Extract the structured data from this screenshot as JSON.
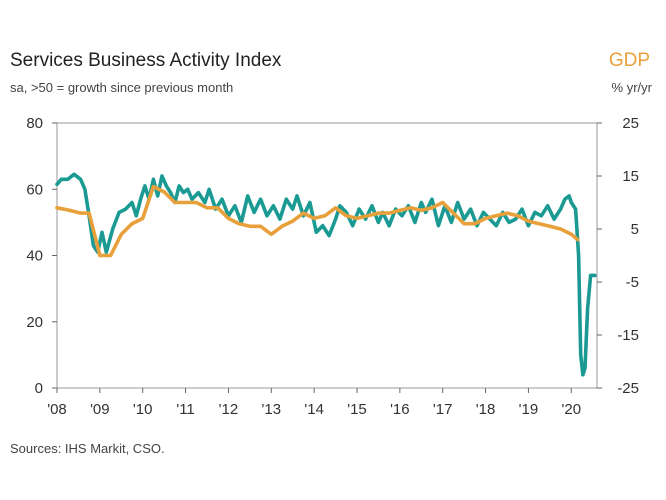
{
  "chart_data": {
    "type": "line",
    "title": "Services Business Activity Index",
    "subtitle": "sa, >50 = growth since previous month",
    "right_axis_title": "GDP",
    "right_axis_unit": "% yr/yr",
    "source": "Sources: IHS Markit, CSO.",
    "x_tick_labels": [
      "'08",
      "'09",
      "'10",
      "'11",
      "'12",
      "'13",
      "'14",
      "'15",
      "'16",
      "'17",
      "'18",
      "'19",
      "'20"
    ],
    "xlim": [
      2008,
      2020.6
    ],
    "left_axis": {
      "ylim": [
        0,
        80
      ],
      "ticks": [
        0,
        20,
        40,
        60,
        80
      ]
    },
    "right_axis": {
      "ylim": [
        -25,
        25
      ],
      "ticks": [
        -25,
        -15,
        -5,
        5,
        15,
        25
      ]
    },
    "grid": false,
    "series": [
      {
        "name": "Services Business Activity Index",
        "axis": "left",
        "color": "#1a9a93",
        "x": [
          2008.0,
          2008.1,
          2008.25,
          2008.4,
          2008.55,
          2008.65,
          2008.75,
          2008.85,
          2008.95,
          2009.05,
          2009.15,
          2009.3,
          2009.45,
          2009.6,
          2009.75,
          2009.85,
          2009.95,
          2010.05,
          2010.15,
          2010.25,
          2010.35,
          2010.45,
          2010.55,
          2010.65,
          2010.75,
          2010.85,
          2010.95,
          2011.05,
          2011.15,
          2011.3,
          2011.45,
          2011.55,
          2011.7,
          2011.85,
          2012.0,
          2012.15,
          2012.3,
          2012.45,
          2012.6,
          2012.75,
          2012.9,
          2013.05,
          2013.2,
          2013.35,
          2013.5,
          2013.6,
          2013.75,
          2013.9,
          2014.05,
          2014.2,
          2014.35,
          2014.5,
          2014.6,
          2014.75,
          2014.9,
          2015.05,
          2015.2,
          2015.35,
          2015.5,
          2015.6,
          2015.75,
          2015.9,
          2016.05,
          2016.2,
          2016.35,
          2016.5,
          2016.6,
          2016.75,
          2016.9,
          2017.05,
          2017.2,
          2017.35,
          2017.5,
          2017.65,
          2017.8,
          2017.95,
          2018.1,
          2018.25,
          2018.4,
          2018.55,
          2018.7,
          2018.85,
          2019.0,
          2019.15,
          2019.3,
          2019.45,
          2019.6,
          2019.75,
          2019.85,
          2019.95,
          2020.0,
          2020.1,
          2020.17,
          2020.22,
          2020.27,
          2020.32,
          2020.38,
          2020.45,
          2020.55
        ],
        "values": [
          61.5,
          63,
          63,
          64.5,
          63,
          60,
          52,
          43,
          41,
          47,
          41,
          48,
          53,
          54,
          56,
          52,
          57,
          61,
          57,
          63,
          58,
          64,
          61,
          59,
          56,
          61,
          59,
          60,
          57,
          59,
          56,
          60,
          54,
          57,
          52,
          55,
          50,
          58,
          53,
          57,
          52,
          55,
          51,
          57,
          54,
          58,
          52,
          56,
          47,
          49,
          46,
          51,
          55,
          53,
          49,
          54,
          51,
          55,
          50,
          53,
          49,
          54,
          52,
          55,
          50,
          56,
          53,
          57,
          49,
          55,
          50,
          56,
          51,
          54,
          49,
          53,
          51,
          49,
          53,
          50,
          51,
          54,
          49,
          53,
          52,
          55,
          51,
          54,
          57,
          58,
          56,
          54,
          40,
          10,
          4,
          6,
          24,
          34,
          34
        ]
      },
      {
        "name": "GDP",
        "axis": "right",
        "color": "#e8a03a",
        "x": [
          2008.0,
          2008.3,
          2008.55,
          2008.75,
          2009.0,
          2009.25,
          2009.5,
          2009.75,
          2010.0,
          2010.25,
          2010.5,
          2010.75,
          2011.0,
          2011.25,
          2011.5,
          2011.75,
          2012.0,
          2012.25,
          2012.5,
          2012.75,
          2013.0,
          2013.25,
          2013.5,
          2013.75,
          2014.0,
          2014.25,
          2014.5,
          2014.75,
          2015.0,
          2015.25,
          2015.5,
          2015.75,
          2016.0,
          2016.25,
          2016.5,
          2016.75,
          2017.0,
          2017.25,
          2017.5,
          2017.75,
          2018.0,
          2018.25,
          2018.5,
          2018.75,
          2019.0,
          2019.25,
          2019.5,
          2019.75,
          2020.0,
          2020.15
        ],
        "values": [
          9,
          8.5,
          8,
          8,
          0,
          0,
          4,
          6,
          7,
          13,
          12,
          10,
          10,
          10,
          9,
          9,
          7,
          6,
          5.5,
          5.5,
          4,
          5.5,
          6.5,
          8,
          7,
          7.5,
          9,
          7.5,
          7,
          7.5,
          8,
          8,
          8.5,
          9,
          8.5,
          9,
          10,
          8,
          6,
          6,
          7,
          7.5,
          8,
          7.5,
          6.5,
          6,
          5.5,
          5,
          4,
          3
        ]
      }
    ]
  }
}
